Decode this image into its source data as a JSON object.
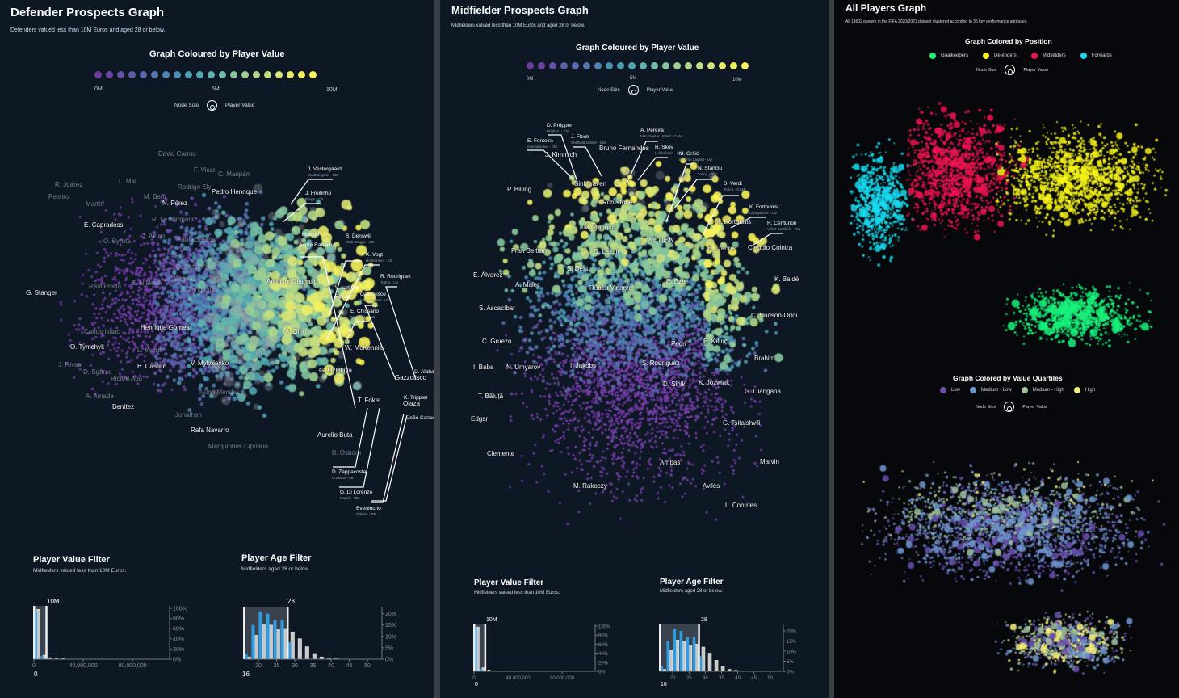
{
  "colors": {
    "scale": [
      "#6b3a9c",
      "#6a44a2",
      "#6551a8",
      "#5f5eac",
      "#5a6aae",
      "#5576b0",
      "#5083b2",
      "#4b90b3",
      "#4c9cb3",
      "#52a8b1",
      "#5fb3ac",
      "#71bda6",
      "#86c69d",
      "#9bcf94",
      "#b1d78a",
      "#c5de80",
      "#d8e576",
      "#e6ea6c",
      "#f0ef62",
      "#f8f35a"
    ],
    "selected_bar": "#2f9be0",
    "all_bar": "#c8c8c8",
    "goalkeepers": "#19f07a",
    "defenders": "#f4f21a",
    "midfielders": "#ec1451",
    "forwards": "#19d9ee",
    "low": "#6a4fb0",
    "medium_low": "#6f95cf",
    "medium_high": "#9fc39a",
    "high": "#f6f07a"
  },
  "defender": {
    "title": "Defender Prospects Graph",
    "subtitle": "Defenders valued less than 10M Euros and aged 28 or below.",
    "legend": {
      "title": "Graph Coloured by Player Value",
      "min": "0M",
      "mid": "5M",
      "max": "10M",
      "node_size": "Node Size",
      "node_size_meaning": "Player Value"
    },
    "labels": [
      "David Carmo",
      "R. Juárez",
      "Peteiro",
      "L. Mal",
      "Martín",
      "F. Vicari",
      "C. Maripán",
      "Rodrigo Ely",
      "Pedro Henrique",
      "M. Beni",
      "N. Pérez",
      "E. Capradossi",
      "R. Le Normand",
      "O. Syrota",
      "J. Aidoo",
      "Pablo Santos",
      "D. Šutalo",
      "G. Stanger",
      "Raúl Prada",
      "S. Nlakaté",
      "J. Vásquez",
      "J. Tanganga",
      "Antonio Chiamulo",
      "Henrique Gomes",
      "Carlos Isaac",
      "O. Tymchyk",
      "L. Venuti",
      "A. Dinu",
      "J. Rivas",
      "B. Castillo",
      "V. Mykolenko",
      "D. Sgarce",
      "Ricard Apa",
      "W. McKennie",
      "G. Dzhikiya",
      "A. Amade",
      "Benítez",
      "Nuno Mendes",
      "Jonathan",
      "Rafa Navarro",
      "Aurelio Buta",
      "Marquinhos Cipriano",
      "T. Foket",
      "Olaza",
      "Gazzolisco",
      "B. Osborn"
    ],
    "annotations": [
      {
        "name": "J. Vestergaard",
        "detail": "Southampton - CB"
      },
      {
        "name": "J. Freitinho",
        "detail": "Braga - CB"
      },
      {
        "name": "Maicon",
        "detail": ""
      },
      {
        "name": "André Ramalho",
        "detail": "Red Bull Salzburg - CB"
      },
      {
        "name": "S. Denswil",
        "detail": "Club Brugge - CB"
      },
      {
        "name": "K. Vogt",
        "detail": "Hoffenheim - CB"
      },
      {
        "name": "R. Rodriguez",
        "detail": "Torino - LB"
      },
      {
        "name": "V. van Dijk",
        "detail": ""
      },
      {
        "name": "Pique",
        "detail": ""
      },
      {
        "name": "Gazzolisco",
        "detail": "Internacional - LB"
      },
      {
        "name": "E. Chissano",
        "detail": "Famalicão - LB"
      },
      {
        "name": "D. Alaba",
        "detail": ""
      },
      {
        "name": "K. Trippier",
        "detail": ""
      },
      {
        "name": "João Cancelo",
        "detail": ""
      },
      {
        "name": "D. Zappacosta",
        "detail": "Chelsea - RB"
      },
      {
        "name": "G. Di Lorenzo",
        "detail": "Napoli - RB"
      },
      {
        "name": "Evertincho",
        "detail": "Grêmio - RB"
      }
    ],
    "value_filter": {
      "title": "Player Value Filter",
      "subtitle": "Midfielders valued less than 10M Euros.",
      "brush_max": "10M",
      "brush_min": "0"
    },
    "age_filter": {
      "title": "Player Age Filter",
      "subtitle": "Midfielders aged 28 or below.",
      "brush_max": "28",
      "brush_min": "16"
    }
  },
  "midfielder": {
    "title": "Midfielder Prospects Graph",
    "subtitle": "Midfielders valued less than 10M Euros and aged 28 or below.",
    "legend": {
      "title": "Graph Coloured by Player Value",
      "min": "0M",
      "mid": "5M",
      "max": "10M",
      "node_size": "Node Size",
      "node_size_meaning": "Player Value"
    },
    "labels": [
      "J. Kimmich",
      "Bruno Fernandes",
      "P. Billing",
      "Sinkgraven",
      "L. Robertone",
      "K. Fortounis",
      "M. Dahoud",
      "Kennedy",
      "Fran Beltrán",
      "D. Laxalt",
      "B. Traoré",
      "Claudio Cointra",
      "S. Dest",
      "E. Álvarez",
      "A. Maier",
      "Rúben Vinagre",
      "E. Eze",
      "K. Baldé",
      "S. Ascacíbar",
      "C. Hudson-Odoi",
      "C. Gruezo",
      "Pedri",
      "E. Kılınç",
      "Brahim",
      "I. Baba",
      "N. Umyarov",
      "I. Jakobs",
      "S. Rodríguez",
      "D. Sinik",
      "K. Jóźwiak",
      "G. Diangana",
      "T. Băluță",
      "Edgar",
      "G. Tsitaishvili",
      "Clemente",
      "Arribas",
      "Marvin",
      "M. Rakoczy",
      "Avilés",
      "L. Coordes"
    ],
    "annotations": [
      {
        "name": "D. Pröpper",
        "detail": "Brighton - CM"
      },
      {
        "name": "J. Fleck",
        "detail": "Sheffield United - CM"
      },
      {
        "name": "E. Fontoira",
        "detail": "Internacional - CM"
      },
      {
        "name": "A. Pereira",
        "detail": "Manchester United - CAM"
      },
      {
        "name": "R. Skov",
        "detail": "Hoffenheim - LW"
      },
      {
        "name": "M. Oršić",
        "detail": "Dinamo Zagreb - LW"
      },
      {
        "name": "N. Stanciu",
        "detail": "Torino - RW"
      },
      {
        "name": "S. Verdi",
        "detail": "Torino - CAM"
      },
      {
        "name": "K. Fortounis",
        "detail": "Olympiacos - LW"
      },
      {
        "name": "R. Centurión",
        "detail": "Vélez Sarsfield - RW"
      }
    ],
    "value_filter": {
      "title": "Player Value Filter",
      "subtitle": "Midfielders valued less than 10M Euros.",
      "brush_max": "10M",
      "brush_min": "0"
    },
    "age_filter": {
      "title": "Player Age Filter",
      "subtitle": "Midfielders aged 28 or below.",
      "brush_max": "28",
      "brush_min": "16"
    }
  },
  "all_players": {
    "title": "All Players Graph",
    "subtitle": "All 14602 players in the FIFA 2020/2021 dataset clustered according to 35 key performance attributes.",
    "position_legend": {
      "title": "Graph Colored by Position",
      "items": [
        "Goalkeepers",
        "Defenders",
        "Midfielders",
        "Forwards"
      ],
      "node_size": "Node Size",
      "node_size_meaning": "Player Value"
    },
    "quartile_legend": {
      "title": "Graph Colored by Value Quartiles",
      "items": [
        "Low",
        "Medium - Low",
        "Medium - High",
        "High"
      ],
      "node_size": "Node Size",
      "node_size_meaning": "Player Value"
    }
  },
  "chart_data": [
    {
      "type": "bar",
      "name": "value_histogram",
      "x_unit": "Euros",
      "bin_width": 5000000,
      "bins": [
        0,
        5000000,
        10000000,
        15000000,
        20000000
      ],
      "series": [
        {
          "values": [
            98,
            8,
            3,
            1,
            1
          ]
        },
        {
          "values": [
            95,
            6,
            0,
            0,
            0
          ]
        }
      ],
      "xticks": [
        "0",
        "40,000,000",
        "80,000,000"
      ],
      "xtick_values": [
        0,
        40000000,
        80000000
      ],
      "xlim": [
        0,
        110000000
      ],
      "yticks": [
        "0%",
        "20%",
        "40%",
        "60%",
        "80%",
        "100%"
      ],
      "ylim": [
        0,
        100
      ],
      "brush": [
        0,
        10000000
      ]
    },
    {
      "type": "bar",
      "name": "age_histogram",
      "bin_width": 2,
      "bins": [
        16,
        18,
        20,
        22,
        24,
        26,
        28,
        30,
        32,
        34,
        36,
        38,
        40,
        42
      ],
      "series": [
        {
          "values": [
            1,
            10.5,
            15.5,
            15,
            13,
            13.5,
            12,
            9,
            5.5,
            2.5,
            1,
            0.5,
            0.2,
            0.1
          ]
        },
        {
          "values": [
            2.5,
            15,
            21,
            20,
            17,
            17,
            7.5,
            0,
            0,
            0,
            0,
            0,
            0,
            0
          ]
        }
      ],
      "xticks": [
        "20",
        "25",
        "30",
        "35",
        "40",
        "45",
        "50"
      ],
      "xtick_values": [
        20,
        25,
        30,
        35,
        40,
        45,
        50
      ],
      "xlim": [
        16,
        54
      ],
      "yticks": [
        "0%",
        "5%",
        "10%",
        "15%",
        "20%"
      ],
      "ylim": [
        0,
        22
      ],
      "brush": [
        16,
        28
      ]
    }
  ]
}
